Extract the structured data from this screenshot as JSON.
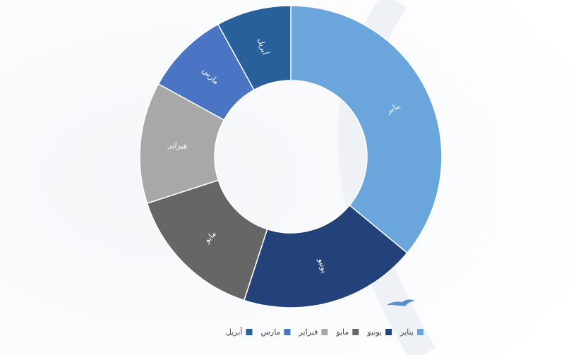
{
  "chart_data": {
    "type": "donut",
    "categories": [
      "يناير",
      "يونيو",
      "مايو",
      "فبراير",
      "مارس",
      "أبريل"
    ],
    "values": [
      36,
      19,
      15,
      13,
      9,
      8
    ],
    "colors": [
      "#6aa5dc",
      "#24427a",
      "#666666",
      "#a8a8a8",
      "#4a74c4",
      "#27609a"
    ],
    "legend": "bottom"
  }
}
